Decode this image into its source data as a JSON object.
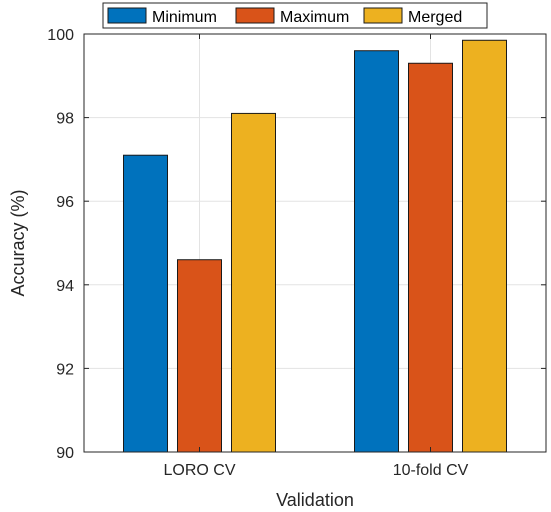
{
  "chart_data": {
    "type": "bar",
    "title": "",
    "xlabel": "Validation",
    "ylabel": "Accuracy (%)",
    "categories": [
      "LORO CV",
      "10-fold CV"
    ],
    "ylim": [
      90,
      100
    ],
    "yticks": [
      "90",
      "92",
      "94",
      "96",
      "98",
      "100"
    ],
    "grid": true,
    "legend_position": "top",
    "series": [
      {
        "name": "Minimum",
        "color": "#0072BD",
        "values": [
          97.1,
          99.6
        ]
      },
      {
        "name": "Maximum",
        "color": "#D95319",
        "values": [
          94.6,
          99.3
        ]
      },
      {
        "name": "Merged",
        "color": "#EDB120",
        "values": [
          98.1,
          99.85
        ]
      }
    ]
  }
}
